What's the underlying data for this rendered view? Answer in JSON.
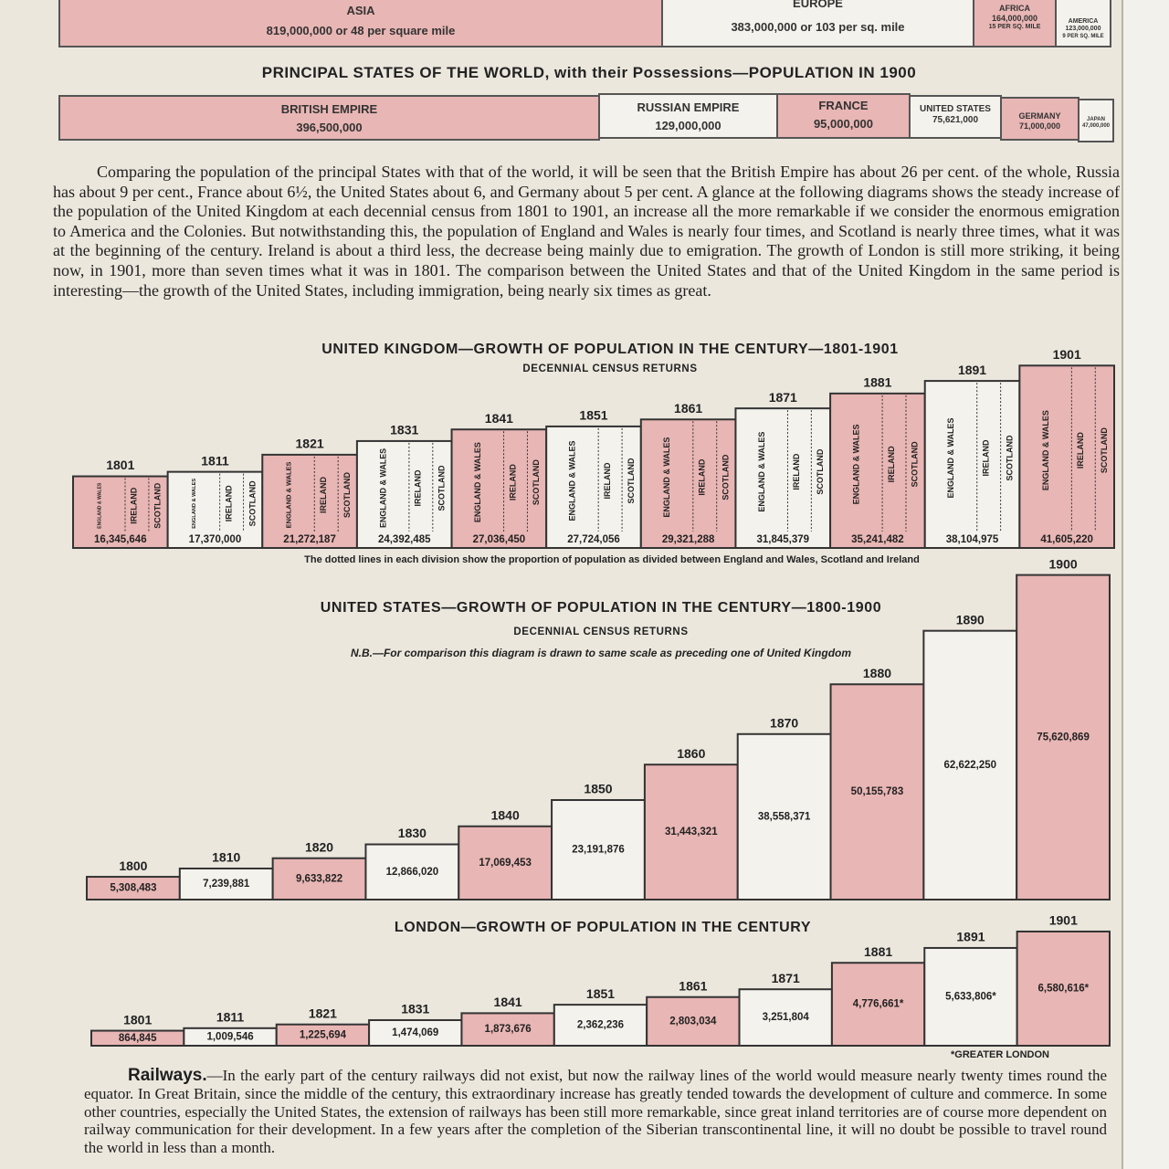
{
  "world_bar": {
    "segments": [
      {
        "name": "ASIA",
        "lines": [
          "819,000,000 or 48 per square mile"
        ]
      },
      {
        "name": "EUROPE",
        "lines": [
          "383,000,000 or 103 per sq. mile"
        ]
      },
      {
        "name": "AFRICA",
        "lines": [
          "164,000,000",
          "15 PER SQ. MILE"
        ]
      },
      {
        "name": "AMERICA",
        "lines": [
          "123,000,000",
          "9 PER SQ. MILE"
        ]
      }
    ]
  },
  "states": {
    "title": "PRINCIPAL STATES OF THE WORLD, with their Possessions—POPULATION IN 1900",
    "segments": [
      {
        "name": "BRITISH EMPIRE",
        "text": "396,500,000"
      },
      {
        "name": "RUSSIAN EMPIRE",
        "text": "129,000,000"
      },
      {
        "name": "FRANCE",
        "text": "95,000,000"
      },
      {
        "name": "UNITED STATES",
        "text": "75,621,000"
      },
      {
        "name": "GERMANY",
        "text": "71,000,000"
      },
      {
        "name": "JAPAN",
        "text": "47,000,000"
      }
    ]
  },
  "intro": "Comparing the population of the principal States with that of the world, it will be seen that the British Empire has about 26 per cent. of the whole, Russia has about 9 per cent., France about 6½, the United States about 6, and Germany about 5 per cent. A glance at the following diagrams shows the steady increase of the population of the United Kingdom at each decennial census from 1801 to 1901, an increase all the more remarkable if we consider the enormous emigration to America and the Colonies. But notwithstanding this, the population of England and Wales is nearly four times, and Scotland is nearly three times, what it was at the beginning of the century. Ireland is about a third less, the decrease being mainly due to emigration. The growth of London is still more striking, it being now, in 1901, more than seven times what it was in 1801. The comparison between the United States and that of the United Kingdom in the same period is interesting—the growth of the United States, including immigration, being nearly six times as great.",
  "chart_data": [
    {
      "type": "bar",
      "title": "UNITED KINGDOM—GROWTH OF POPULATION IN THE CENTURY—1801-1901",
      "subtitle": "DECENNIAL CENSUS RETURNS",
      "note": "The dotted lines in each division show the proportion of population as divided between England and Wales, Scotland and Ireland",
      "categories": [
        "1801",
        "1811",
        "1821",
        "1831",
        "1841",
        "1851",
        "1861",
        "1871",
        "1881",
        "1891",
        "1901"
      ],
      "values": [
        16345646,
        17370000,
        21272187,
        24392485,
        27036450,
        27724056,
        29321288,
        31845379,
        35241482,
        38104975,
        41605220
      ],
      "value_labels": [
        "16,345,646",
        "17,370,000",
        "21,272,187",
        "24,392,485",
        "27,036,450",
        "27,724,056",
        "29,321,288",
        "31,845,379",
        "35,241,482",
        "38,104,975",
        "41,605,220"
      ],
      "parts": [
        "ENGLAND & WALES",
        "IRELAND",
        "SCOTLAND"
      ],
      "colors": [
        "#e8b6b4",
        "#f4f2ec"
      ]
    },
    {
      "type": "bar",
      "title": "UNITED STATES—GROWTH OF POPULATION IN THE CENTURY—1800-1900",
      "subtitle": "DECENNIAL CENSUS RETURNS",
      "note": "N.B.—For comparison this diagram is drawn to same scale as preceding one of United Kingdom",
      "categories": [
        "1800",
        "1810",
        "1820",
        "1830",
        "1840",
        "1850",
        "1860",
        "1870",
        "1880",
        "1890",
        "1900"
      ],
      "values": [
        5308483,
        7239881,
        9633822,
        12866020,
        17069453,
        23191876,
        31443321,
        38558371,
        50155783,
        62622250,
        75620869
      ],
      "value_labels": [
        "5,308,483",
        "7,239,881",
        "9,633,822",
        "12,866,020",
        "17,069,453",
        "23,191,876",
        "31,443,321",
        "38,558,371",
        "50,155,783",
        "62,622,250",
        "75,620,869"
      ],
      "colors": [
        "#e8b6b4",
        "#f4f2ec"
      ]
    },
    {
      "type": "bar",
      "title": "LONDON—GROWTH OF POPULATION IN THE CENTURY",
      "note": "*GREATER LONDON",
      "categories": [
        "1801",
        "1811",
        "1821",
        "1831",
        "1841",
        "1851",
        "1861",
        "1871",
        "1881",
        "1891",
        "1901"
      ],
      "values": [
        864845,
        1009546,
        1225694,
        1474069,
        1873676,
        2362236,
        2803034,
        3251804,
        4776661,
        5633806,
        6580616
      ],
      "value_labels": [
        "864,845",
        "1,009,546",
        "1,225,694",
        "1,474,069",
        "1,873,676",
        "2,362,236",
        "2,803,034",
        "3,251,804",
        "4,776,661*",
        "5,633,806*",
        "6,580,616*"
      ],
      "colors": [
        "#e8b6b4",
        "#f4f2ec"
      ]
    }
  ],
  "railways": {
    "heading": "Railways.",
    "text": "—In the early part of the century railways did not exist, but now the railway lines of the world would measure nearly twenty times round the equator. In Great Britain, since the middle of the century, this extraordinary increase has greatly tended towards the development of culture and commerce. In some other countries, especially the United States, the extension of railways has been still more remarkable, since great inland territories are of course more dependent on railway communication for their development. In a few years after the completion of the Siberian transcontinental line, it will no doubt be possible to travel round the world in less than a month."
  }
}
